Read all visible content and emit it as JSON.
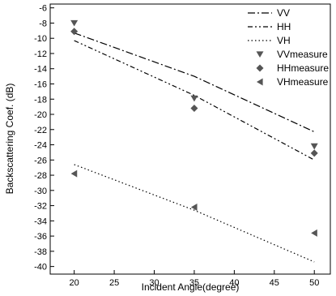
{
  "chart_data": {
    "type": "line",
    "title": "",
    "xlabel": "Incident Angle(degree)",
    "ylabel": "Backscattering Coef. (dB)",
    "xlim": [
      17,
      52
    ],
    "ylim": [
      -41,
      -5.5
    ],
    "xticks": [
      20,
      25,
      30,
      35,
      40,
      45,
      50
    ],
    "yticks": [
      -6,
      -8,
      -10,
      -12,
      -14,
      -16,
      -18,
      -20,
      -22,
      -24,
      -26,
      -28,
      -30,
      -32,
      -34,
      -36,
      -38,
      -40
    ],
    "grid": false,
    "legend_position": "top-right",
    "series": [
      {
        "name": "VV",
        "kind": "line",
        "dash": "dash-dot",
        "color": "#000000",
        "x": [
          20,
          35,
          50
        ],
        "y": [
          -9.3,
          -15.0,
          -22.3
        ]
      },
      {
        "name": "HH",
        "kind": "line",
        "dash": "dash-dot-dot",
        "color": "#000000",
        "x": [
          20,
          35,
          50
        ],
        "y": [
          -10.3,
          -17.5,
          -26.0
        ]
      },
      {
        "name": "VH",
        "kind": "line",
        "dash": "dotted",
        "color": "#000000",
        "x": [
          20,
          35,
          50
        ],
        "y": [
          -26.6,
          -32.6,
          -39.4
        ]
      },
      {
        "name": "VVmeasure",
        "kind": "marker",
        "marker": "triangle-down",
        "color": "#555555",
        "x": [
          20,
          35,
          50
        ],
        "y": [
          -8.0,
          -17.9,
          -24.2
        ]
      },
      {
        "name": "HHmeasure",
        "kind": "marker",
        "marker": "diamond",
        "color": "#555555",
        "x": [
          20,
          35,
          50
        ],
        "y": [
          -9.1,
          -19.2,
          -25.1
        ]
      },
      {
        "name": "VHmeasure",
        "kind": "marker",
        "marker": "triangle-left",
        "color": "#555555",
        "x": [
          20,
          35,
          50
        ],
        "y": [
          -27.8,
          -32.2,
          -35.6
        ]
      }
    ]
  }
}
